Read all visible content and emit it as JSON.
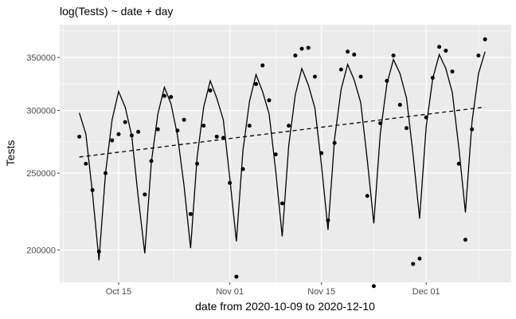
{
  "chart_data": {
    "type": "scatter",
    "title": "log(Tests) ~ date + day",
    "xlabel": "date from 2020-10-09 to 2020-12-10",
    "ylabel": "Tests",
    "y_scale": "log",
    "grid": true,
    "legend": "none",
    "x_range": [
      "2020-10-06",
      "2020-12-14"
    ],
    "y_range": [
      182000,
      385000
    ],
    "x_ticks": [
      {
        "date": "2020-10-15",
        "label": "Oct 15"
      },
      {
        "date": "2020-11-01",
        "label": "Nov 01"
      },
      {
        "date": "2020-11-15",
        "label": "Nov 15"
      },
      {
        "date": "2020-12-01",
        "label": "Dec 01"
      }
    ],
    "y_ticks": [
      {
        "value": 200000,
        "label": "200000"
      },
      {
        "value": 250000,
        "label": "250000"
      },
      {
        "value": 300000,
        "label": "300000"
      },
      {
        "value": 350000,
        "label": "350000"
      }
    ],
    "colors": {
      "panel": "#ebebeb",
      "grid": "#ffffff",
      "points": "#000000",
      "lines": "#000000"
    },
    "series": [
      {
        "kind": "points",
        "x": [
          "2020-10-09",
          "2020-10-10",
          "2020-10-11",
          "2020-10-12",
          "2020-10-13",
          "2020-10-14",
          "2020-10-15",
          "2020-10-16",
          "2020-10-17",
          "2020-10-18",
          "2020-10-19",
          "2020-10-20",
          "2020-10-21",
          "2020-10-22",
          "2020-10-23",
          "2020-10-24",
          "2020-10-25",
          "2020-10-26",
          "2020-10-27",
          "2020-10-28",
          "2020-10-29",
          "2020-10-30",
          "2020-10-31",
          "2020-11-01",
          "2020-11-02",
          "2020-11-03",
          "2020-11-04",
          "2020-11-05",
          "2020-11-06",
          "2020-11-07",
          "2020-11-08",
          "2020-11-09",
          "2020-11-10",
          "2020-11-11",
          "2020-11-12",
          "2020-11-13",
          "2020-11-14",
          "2020-11-15",
          "2020-11-16",
          "2020-11-17",
          "2020-11-18",
          "2020-11-19",
          "2020-11-20",
          "2020-11-21",
          "2020-11-22",
          "2020-11-23",
          "2020-11-24",
          "2020-11-25",
          "2020-11-26",
          "2020-11-27",
          "2020-11-28",
          "2020-11-29",
          "2020-11-30",
          "2020-12-01",
          "2020-12-02",
          "2020-12-03",
          "2020-12-04",
          "2020-12-05",
          "2020-12-06",
          "2020-12-07",
          "2020-12-08",
          "2020-12-09",
          "2020-12-10"
        ],
        "y": [
          278000,
          257000,
          238000,
          199000,
          250000,
          275000,
          280000,
          290000,
          279000,
          282000,
          235000,
          259000,
          284000,
          313000,
          312000,
          283000,
          292000,
          222000,
          257000,
          287000,
          318000,
          278000,
          277000,
          243000,
          185000,
          253000,
          287000,
          324000,
          342000,
          309000,
          264000,
          229000,
          287000,
          352000,
          359000,
          360000,
          331000,
          265000,
          218000,
          273000,
          338000,
          356000,
          353000,
          331000,
          234000,
          180000,
          289000,
          327000,
          352000,
          305000,
          285000,
          192000,
          195000,
          294000,
          330000,
          361000,
          357000,
          336000,
          257000,
          206000,
          284000,
          352000,
          369000
        ]
      },
      {
        "kind": "line",
        "dash": "solid",
        "x": [
          "2020-10-09",
          "2020-10-10",
          "2020-10-11",
          "2020-10-12",
          "2020-10-13",
          "2020-10-14",
          "2020-10-15",
          "2020-10-16",
          "2020-10-17",
          "2020-10-18",
          "2020-10-19",
          "2020-10-20",
          "2020-10-21",
          "2020-10-22",
          "2020-10-23",
          "2020-10-24",
          "2020-10-25",
          "2020-10-26",
          "2020-10-27",
          "2020-10-28",
          "2020-10-29",
          "2020-10-30",
          "2020-10-31",
          "2020-11-01",
          "2020-11-02",
          "2020-11-03",
          "2020-11-04",
          "2020-11-05",
          "2020-11-06",
          "2020-11-07",
          "2020-11-08",
          "2020-11-09",
          "2020-11-10",
          "2020-11-11",
          "2020-11-12",
          "2020-11-13",
          "2020-11-14",
          "2020-11-15",
          "2020-11-16",
          "2020-11-17",
          "2020-11-18",
          "2020-11-19",
          "2020-11-20",
          "2020-11-21",
          "2020-11-22",
          "2020-11-23",
          "2020-11-24",
          "2020-11-25",
          "2020-11-26",
          "2020-11-27",
          "2020-11-28",
          "2020-11-29",
          "2020-11-30",
          "2020-12-01",
          "2020-12-02",
          "2020-12-03",
          "2020-12-04",
          "2020-12-05",
          "2020-12-06",
          "2020-12-07",
          "2020-12-08",
          "2020-12-09",
          "2020-12-10"
        ],
        "y": [
          298000,
          280000,
          236000,
          194000,
          250000,
          292000,
          317000,
          303000,
          279000,
          233000,
          198000,
          258000,
          297000,
          321000,
          306000,
          279000,
          241000,
          201000,
          262000,
          303000,
          327000,
          311000,
          292000,
          246000,
          205000,
          267000,
          308000,
          333000,
          317000,
          297000,
          252000,
          208000,
          271000,
          314000,
          339000,
          323000,
          302000,
          256000,
          212000,
          276000,
          319000,
          343000,
          328000,
          307000,
          260000,
          216000,
          281000,
          324000,
          348000,
          334000,
          311000,
          264000,
          219000,
          286000,
          329000,
          353000,
          339000,
          316000,
          269000,
          223000,
          290000,
          334000,
          356000
        ]
      },
      {
        "kind": "line",
        "dash": "dashed",
        "x": [
          "2020-10-09",
          "2020-12-10"
        ],
        "y": [
          262000,
          303000
        ]
      }
    ]
  }
}
